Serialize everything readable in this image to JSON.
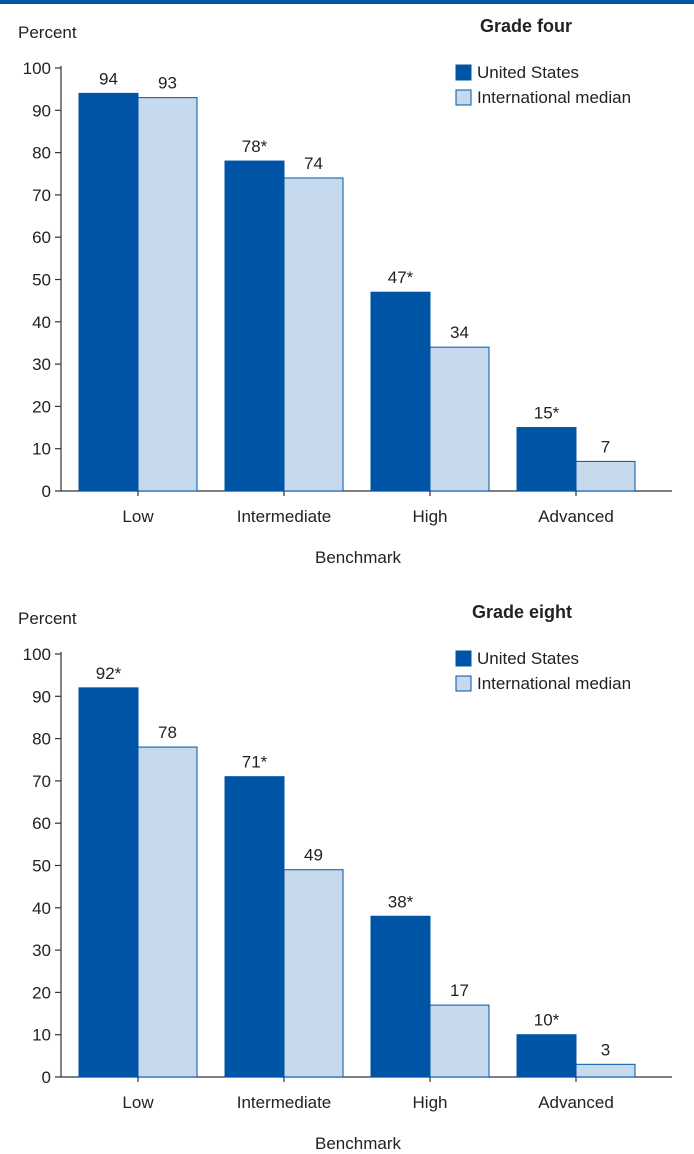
{
  "colors": {
    "accent": "#0054a6",
    "us": "#0054a6",
    "intl": "#c7d9ed",
    "edge": "#0054a6",
    "text": "#222222"
  },
  "chart_data": [
    {
      "type": "bar",
      "title": "Grade four",
      "ylabel": "Percent",
      "xlabel": "Benchmark",
      "ylim": [
        0,
        100
      ],
      "yticks": [
        0,
        10,
        20,
        30,
        40,
        50,
        60,
        70,
        80,
        90,
        100
      ],
      "grid": false,
      "legend": "top-right",
      "categories": [
        "Low",
        "Intermediate",
        "High",
        "Advanced"
      ],
      "series": [
        {
          "name": "United States",
          "values": [
            94,
            78,
            47,
            15
          ],
          "labels": [
            "94",
            "78*",
            "47*",
            "15*"
          ]
        },
        {
          "name": "International median",
          "values": [
            93,
            74,
            34,
            7
          ],
          "labels": [
            "93",
            "74",
            "34",
            "7"
          ]
        }
      ]
    },
    {
      "type": "bar",
      "title": "Grade eight",
      "ylabel": "Percent",
      "xlabel": "Benchmark",
      "ylim": [
        0,
        100
      ],
      "yticks": [
        0,
        10,
        20,
        30,
        40,
        50,
        60,
        70,
        80,
        90,
        100
      ],
      "grid": false,
      "legend": "top-right",
      "categories": [
        "Low",
        "Intermediate",
        "High",
        "Advanced"
      ],
      "series": [
        {
          "name": "United States",
          "values": [
            92,
            71,
            38,
            10
          ],
          "labels": [
            "92*",
            "71*",
            "38*",
            "10*"
          ]
        },
        {
          "name": "International median",
          "values": [
            78,
            49,
            17,
            3
          ],
          "labels": [
            "78",
            "49",
            "17",
            "3"
          ]
        }
      ]
    }
  ]
}
